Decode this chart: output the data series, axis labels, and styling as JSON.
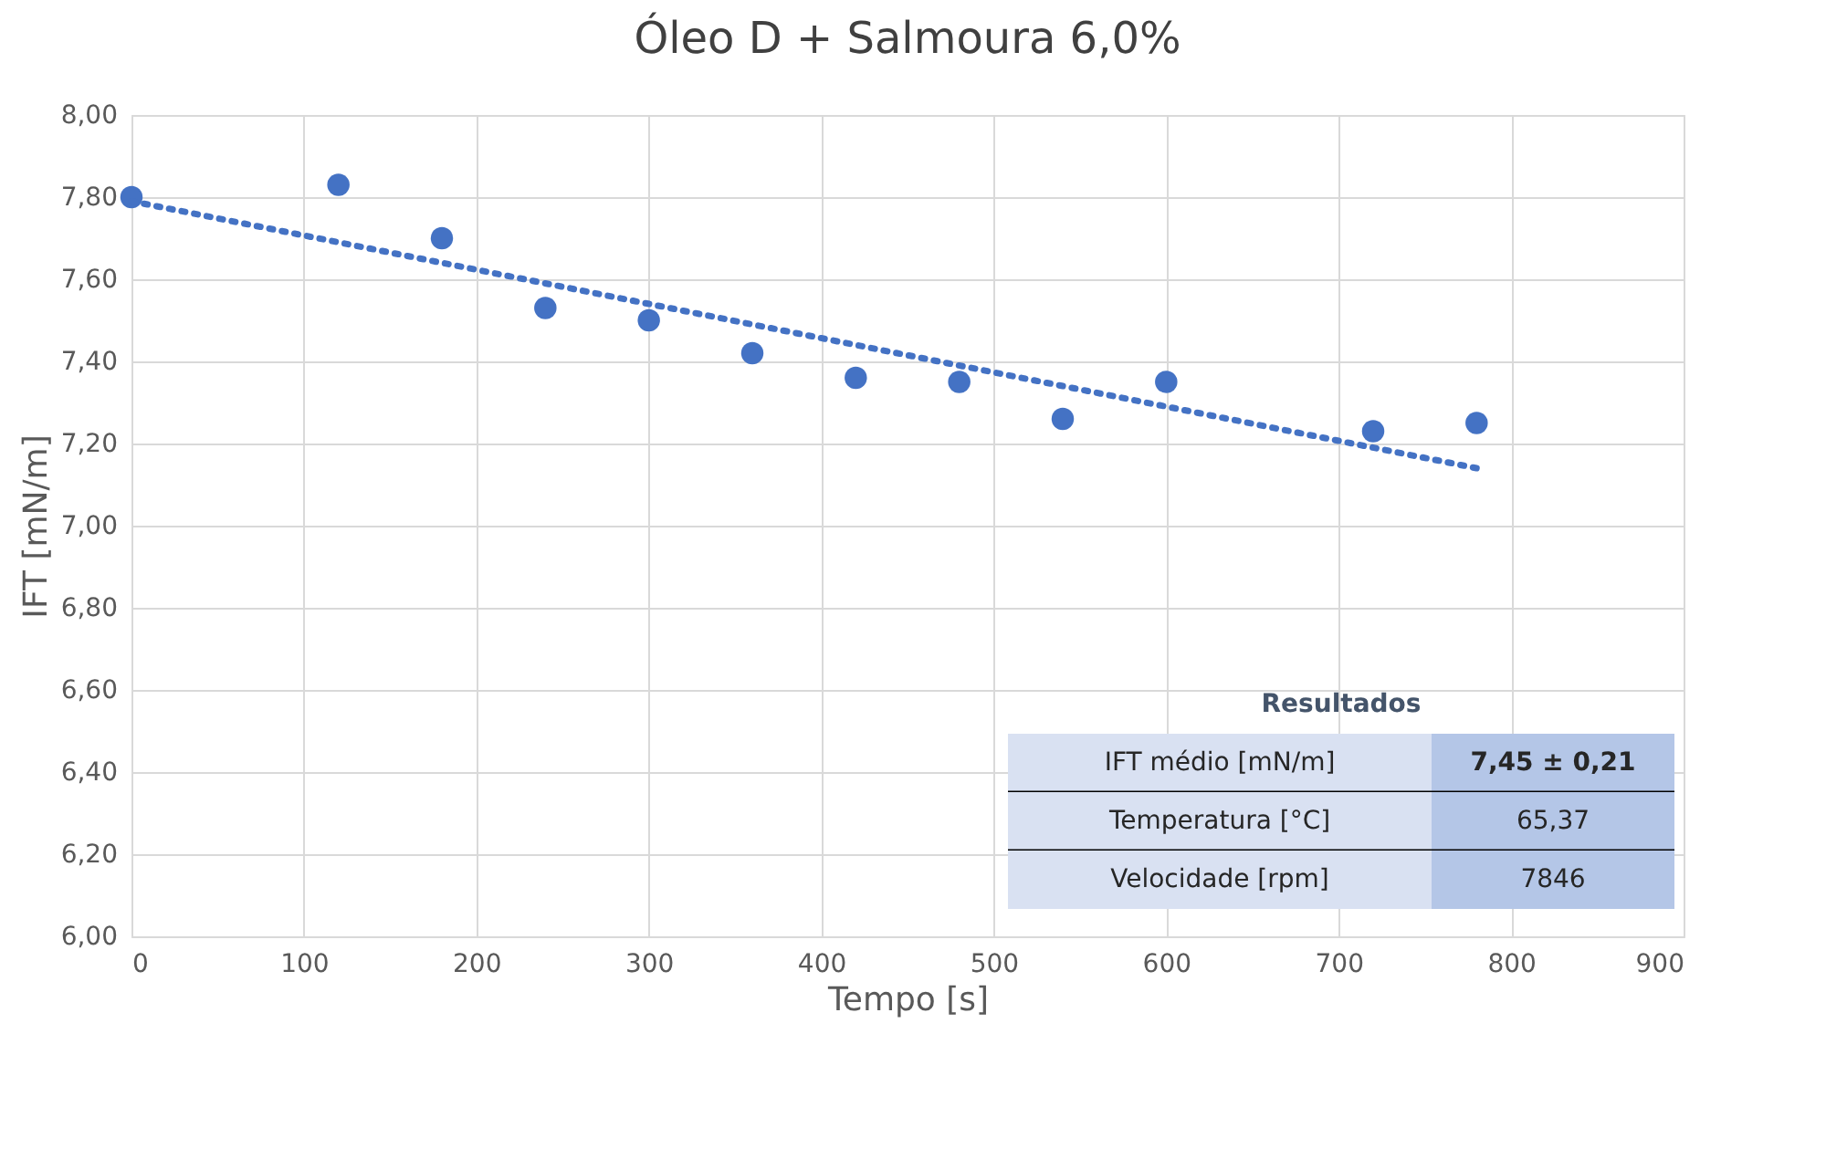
{
  "chart_data": {
    "type": "scatter",
    "title": "Óleo D + Salmoura 6,0%",
    "xlabel": "Tempo [s]",
    "ylabel": "IFT [mN/m]",
    "xlim": [
      0,
      900
    ],
    "xticks": [
      0,
      100,
      200,
      300,
      400,
      500,
      600,
      700,
      800,
      900
    ],
    "ylim": [
      6,
      8
    ],
    "yticks": [
      {
        "value": 6,
        "label": "6,00"
      },
      {
        "value": 6.2,
        "label": "6,20"
      },
      {
        "value": 6.4,
        "label": "6,40"
      },
      {
        "value": 6.6,
        "label": "6,60"
      },
      {
        "value": 6.8,
        "label": "6,80"
      },
      {
        "value": 7,
        "label": "7,00"
      },
      {
        "value": 7.2,
        "label": "7,20"
      },
      {
        "value": 7.4,
        "label": "7,40"
      },
      {
        "value": 7.6,
        "label": "7,60"
      },
      {
        "value": 7.8,
        "label": "7,80"
      },
      {
        "value": 8,
        "label": "8,00"
      }
    ],
    "grid": true,
    "series": [
      {
        "color": "#4472c4",
        "marker": "circle",
        "x": [
          0,
          120,
          180,
          240,
          300,
          360,
          420,
          480,
          540,
          600,
          720,
          780
        ],
        "values": [
          7.8,
          7.83,
          7.7,
          7.53,
          7.5,
          7.42,
          7.36,
          7.35,
          7.26,
          7.35,
          7.23,
          7.25
        ]
      },
      {
        "type": "line",
        "color": "#4472c4",
        "line_style": "dotted",
        "marker": "none",
        "x": [
          0,
          780
        ],
        "values": [
          7.79,
          7.14
        ]
      }
    ],
    "annotations": [
      "Resultados",
      "IFT médio [mN/m]",
      "7,45 ± 0,21",
      "Temperatura [°C]",
      "65,37",
      "Velocidade [rpm]",
      "7846"
    ]
  }
}
